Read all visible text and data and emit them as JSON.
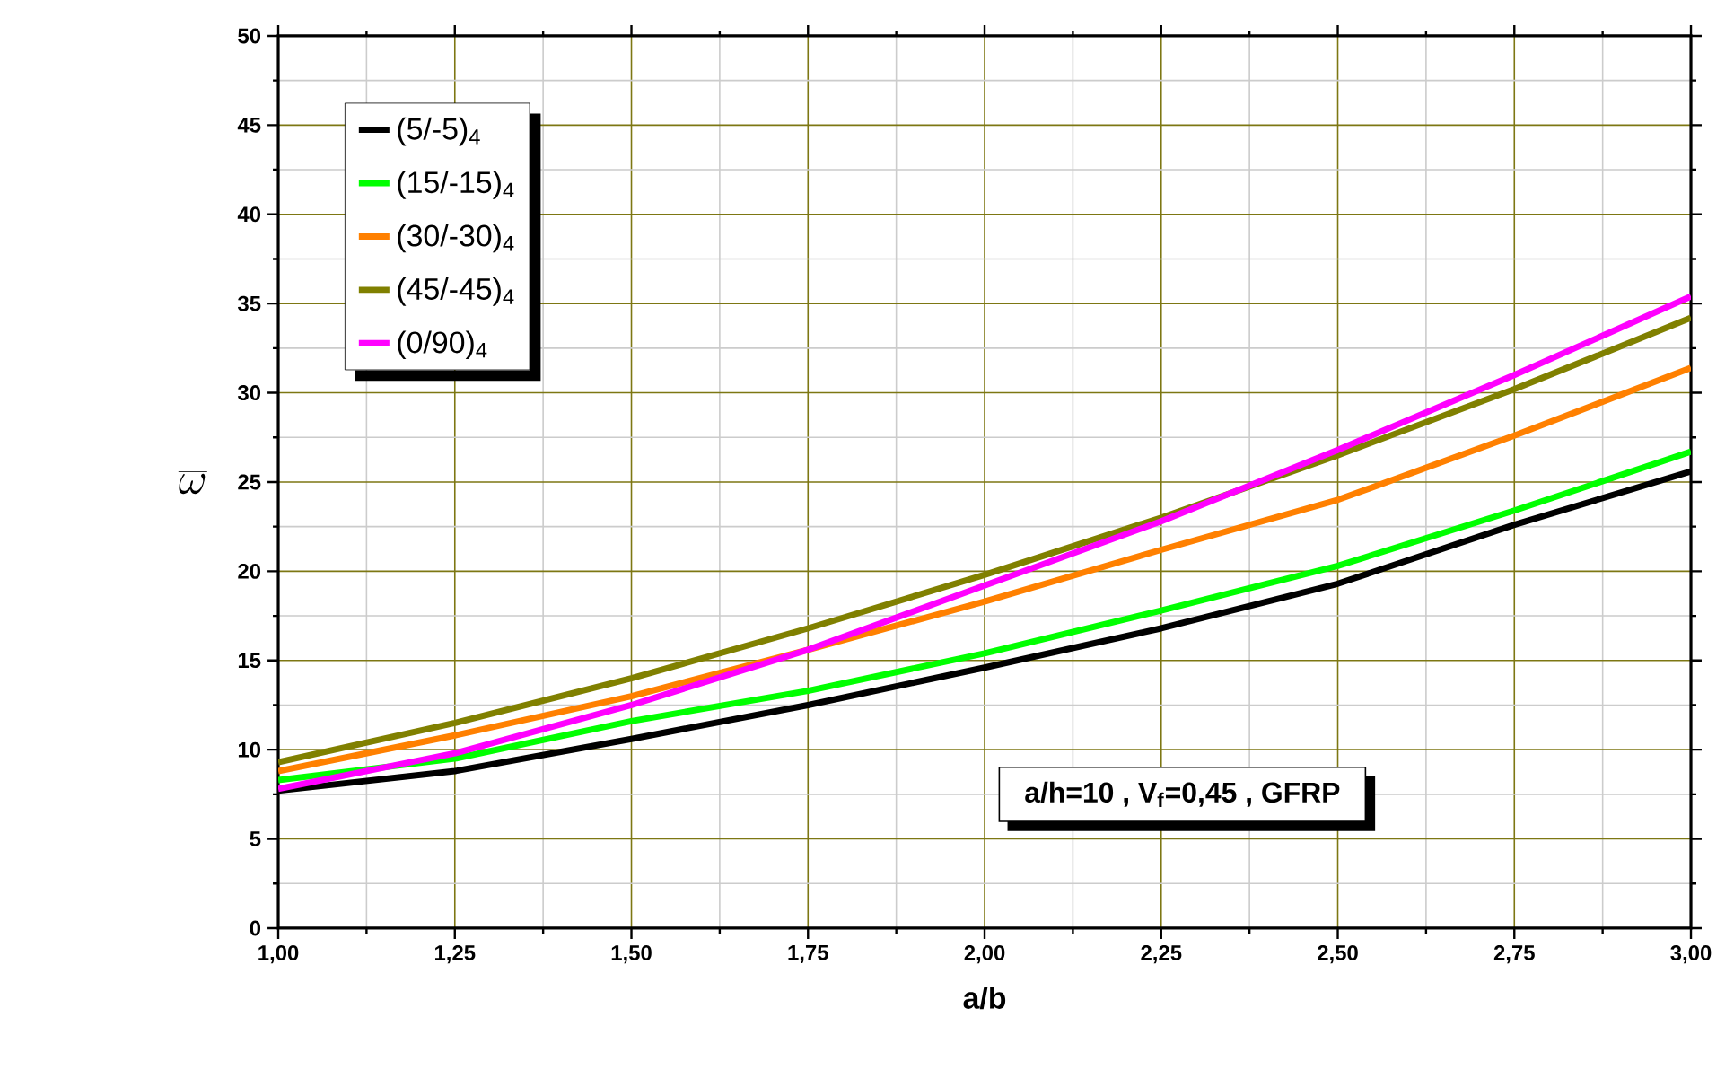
{
  "chart_data": {
    "type": "line",
    "xlabel": "a/b",
    "ylabel": "\\overline{\\omega}",
    "x": [
      1.0,
      1.25,
      1.5,
      1.75,
      2.0,
      2.25,
      2.5,
      2.75,
      3.0
    ],
    "series": [
      {
        "name": "(5/-5)$_{4}$",
        "color": "#000000",
        "values": [
          7.7,
          8.8,
          10.6,
          12.5,
          14.6,
          16.8,
          19.3,
          22.6,
          25.6
        ]
      },
      {
        "name": "(15/-15)$_{4}$",
        "color": "#00ff00",
        "values": [
          8.3,
          9.5,
          11.6,
          13.3,
          15.4,
          17.8,
          20.3,
          23.4,
          26.7
        ]
      },
      {
        "name": "(30/-30)$_{4}$",
        "color": "#ff8000",
        "values": [
          8.8,
          10.8,
          13.0,
          15.6,
          18.3,
          21.2,
          24.0,
          27.6,
          31.4
        ]
      },
      {
        "name": "(45/-45)$_{4}$",
        "color": "#808000",
        "values": [
          9.3,
          11.5,
          14.0,
          16.8,
          19.8,
          23.0,
          26.5,
          30.2,
          34.2
        ]
      },
      {
        "name": "(0/90)$_{4}$",
        "color": "#ff00ff",
        "values": [
          7.8,
          9.8,
          12.5,
          15.6,
          19.2,
          22.8,
          26.8,
          31.0,
          35.4
        ]
      }
    ],
    "xlim": [
      1.0,
      3.0
    ],
    "xticks": [
      {
        "value": 1.0,
        "label": "1,00"
      },
      {
        "value": 1.25,
        "label": "1,25"
      },
      {
        "value": 1.5,
        "label": "1,50"
      },
      {
        "value": 1.75,
        "label": "1,75"
      },
      {
        "value": 2.0,
        "label": "2,00"
      },
      {
        "value": 2.25,
        "label": "2,25"
      },
      {
        "value": 2.5,
        "label": "2,50"
      },
      {
        "value": 2.75,
        "label": "2,75"
      },
      {
        "value": 3.0,
        "label": "3,00"
      }
    ],
    "ylim": [
      0,
      50
    ],
    "yticks": [
      0,
      5,
      10,
      15,
      20,
      25,
      30,
      35,
      40,
      45,
      50
    ],
    "annotations": [
      "a/h=10 , V$_{f}$=0,45 , GFRP"
    ],
    "grid": true,
    "legend": "top left",
    "marker": "none",
    "line_style": "solid"
  }
}
